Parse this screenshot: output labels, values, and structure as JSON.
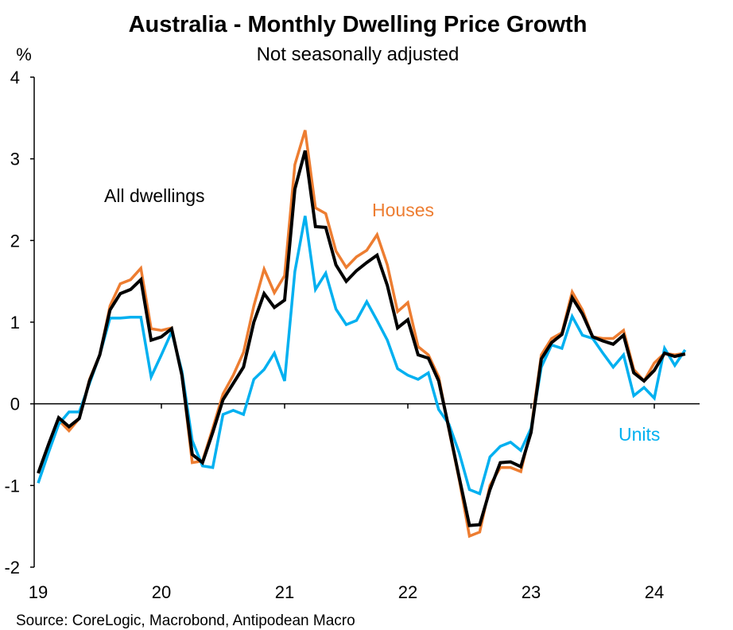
{
  "chart_data": {
    "type": "line",
    "title": "Australia - Monthly Dwelling Price Growth",
    "subtitle": "Not seasonally adjusted",
    "ylabel": "%",
    "xlabel": "",
    "source": "Source: CoreLogic, Macrobond, Antipodean Macro",
    "ylim": [
      -2,
      4
    ],
    "yticks": [
      4,
      3,
      2,
      1,
      0,
      -1,
      -2
    ],
    "xticks": [
      "19",
      "20",
      "21",
      "22",
      "23",
      "24"
    ],
    "x_start": "2019-01",
    "frequency": "monthly",
    "series": [
      {
        "name": "Houses",
        "label": "Houses",
        "color": "#ED7D31",
        "values": [
          -0.85,
          -0.5,
          -0.2,
          -0.33,
          -0.18,
          0.3,
          0.6,
          1.2,
          1.47,
          1.52,
          1.66,
          0.92,
          0.9,
          0.93,
          0.35,
          -0.72,
          -0.7,
          -0.3,
          0.12,
          0.35,
          0.63,
          1.2,
          1.65,
          1.36,
          1.57,
          2.93,
          3.35,
          2.4,
          2.33,
          1.87,
          1.67,
          1.8,
          1.88,
          2.07,
          1.7,
          1.13,
          1.24,
          0.7,
          0.6,
          0.33,
          -0.32,
          -0.93,
          -1.62,
          -1.57,
          -1.0,
          -0.78,
          -0.78,
          -0.83,
          -0.3,
          0.6,
          0.8,
          0.87,
          1.37,
          1.15,
          0.82,
          0.8,
          0.8,
          0.9,
          0.42,
          0.28,
          0.5,
          0.62,
          0.6,
          0.62
        ]
      },
      {
        "name": "Units",
        "label": "Units",
        "color": "#00B0F0",
        "values": [
          -0.97,
          -0.6,
          -0.25,
          -0.1,
          -0.1,
          0.25,
          0.6,
          1.05,
          1.05,
          1.06,
          1.06,
          0.33,
          0.6,
          0.88,
          0.4,
          -0.45,
          -0.76,
          -0.78,
          -0.13,
          -0.08,
          -0.13,
          0.3,
          0.42,
          0.62,
          0.28,
          1.62,
          2.3,
          1.4,
          1.6,
          1.16,
          0.97,
          1.02,
          1.25,
          1.02,
          0.78,
          0.43,
          0.35,
          0.3,
          0.38,
          -0.07,
          -0.25,
          -0.6,
          -1.05,
          -1.1,
          -0.65,
          -0.52,
          -0.47,
          -0.57,
          -0.3,
          0.45,
          0.72,
          0.68,
          1.07,
          0.84,
          0.8,
          0.62,
          0.45,
          0.6,
          0.1,
          0.2,
          0.07,
          0.68,
          0.47,
          0.66
        ]
      },
      {
        "name": "All dwellings",
        "label": "All dwellings",
        "color": "#000000",
        "values": [
          -0.85,
          -0.5,
          -0.17,
          -0.28,
          -0.18,
          0.28,
          0.6,
          1.15,
          1.35,
          1.4,
          1.52,
          0.78,
          0.82,
          0.92,
          0.35,
          -0.62,
          -0.72,
          -0.35,
          0.05,
          0.25,
          0.45,
          1.0,
          1.35,
          1.18,
          1.27,
          2.63,
          3.1,
          2.17,
          2.16,
          1.7,
          1.5,
          1.63,
          1.73,
          1.82,
          1.45,
          0.93,
          1.03,
          0.6,
          0.56,
          0.28,
          -0.3,
          -0.9,
          -1.49,
          -1.48,
          -1.05,
          -0.72,
          -0.71,
          -0.77,
          -0.35,
          0.55,
          0.75,
          0.85,
          1.3,
          1.1,
          0.82,
          0.77,
          0.73,
          0.84,
          0.38,
          0.28,
          0.41,
          0.62,
          0.58,
          0.61
        ]
      }
    ]
  }
}
